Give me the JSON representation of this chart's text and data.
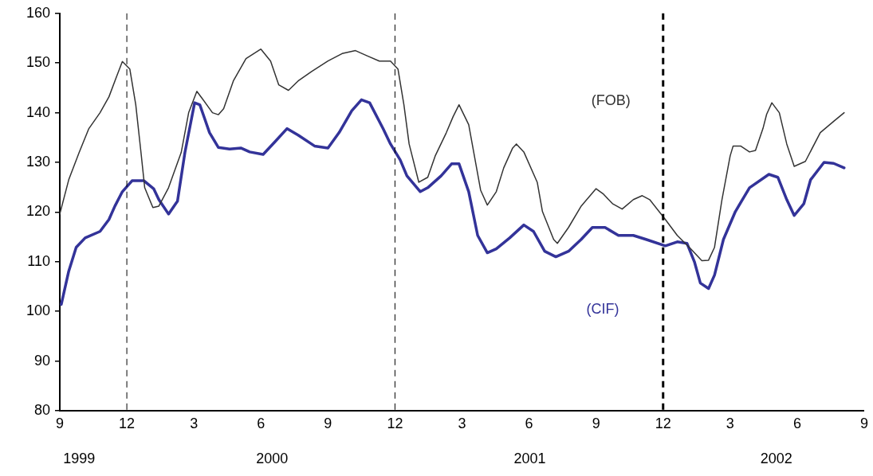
{
  "chart_data": {
    "type": "line",
    "xlim": [
      "1999-09-01",
      "2002-09-01"
    ],
    "xticks": [
      {
        "value": "1999-09-01",
        "label": "9"
      },
      {
        "value": "1999-12-01",
        "label": "12"
      },
      {
        "value": "2000-03-01",
        "label": "3"
      },
      {
        "value": "2000-06-01",
        "label": "6"
      },
      {
        "value": "2000-09-01",
        "label": "9"
      },
      {
        "value": "2000-12-01",
        "label": "12"
      },
      {
        "value": "2001-03-01",
        "label": "3"
      },
      {
        "value": "2001-06-01",
        "label": "6"
      },
      {
        "value": "2001-09-01",
        "label": "9"
      },
      {
        "value": "2001-12-01",
        "label": "12"
      },
      {
        "value": "2002-03-01",
        "label": "3"
      },
      {
        "value": "2002-06-01",
        "label": "6"
      },
      {
        "value": "2002-09-01",
        "label": "9"
      }
    ],
    "x2lim": [
      "1999-09-01",
      "2002-09-01"
    ],
    "x2ticks": [
      {
        "value": "1999-09-27",
        "label": "1999"
      },
      {
        "value": "2000-06-16",
        "label": "2000"
      },
      {
        "value": "2001-06-02",
        "label": "2001"
      },
      {
        "value": "2002-05-03",
        "label": "2002"
      }
    ],
    "ylim": [
      80,
      160
    ],
    "yticks": [
      80,
      90,
      100,
      110,
      120,
      130,
      140,
      150,
      160
    ],
    "grid": false,
    "legend": false,
    "marker": "none",
    "line_style": "solid",
    "ref_lines": [
      {
        "axis": "x",
        "value": "1999-12-01",
        "color": "#000000",
        "line_style": "dashed"
      },
      {
        "axis": "x",
        "value": "2000-12-01",
        "color": "#000000",
        "line_style": "dashed"
      },
      {
        "axis": "x",
        "value": "2001-12-01",
        "color": "#000000",
        "line_style": "dashed"
      }
    ],
    "series": [
      {
        "name": "(FOB)",
        "color": "#333333",
        "x": [
          "1999-09-01",
          "1999-09-13",
          "1999-09-27",
          "1999-10-10",
          "1999-10-25",
          "1999-11-07",
          "1999-11-17",
          "1999-11-25",
          "1999-12-05",
          "1999-12-13",
          "1999-12-20",
          "1999-12-25",
          "2000-01-06",
          "2000-01-14",
          "2000-01-27",
          "2000-02-14",
          "2000-02-24",
          "2000-03-05",
          "2000-03-12",
          "2000-03-26",
          "2000-04-04",
          "2000-04-11",
          "2000-04-24",
          "2000-05-11",
          "2000-06-01",
          "2000-06-14",
          "2000-06-25",
          "2000-07-08",
          "2000-07-21",
          "2000-08-09",
          "2000-09-01",
          "2000-09-20",
          "2000-10-08",
          "2000-10-23",
          "2000-11-10",
          "2000-11-25",
          "2000-12-05",
          "2000-12-13",
          "2000-12-20",
          "2001-01-03",
          "2001-01-15",
          "2001-01-25",
          "2001-02-10",
          "2001-02-19",
          "2001-02-27",
          "2001-03-10",
          "2001-03-26",
          "2001-04-05",
          "2001-04-17",
          "2001-04-27",
          "2001-05-09",
          "2001-05-14",
          "2001-05-24",
          "2001-06-12",
          "2001-06-19",
          "2001-07-04",
          "2001-07-09",
          "2001-07-24",
          "2001-08-11",
          "2001-09-01",
          "2001-09-11",
          "2001-09-23",
          "2001-10-06",
          "2001-10-21",
          "2001-11-03",
          "2001-11-13",
          "2001-12-04",
          "2001-12-20",
          "2002-01-08",
          "2002-01-23",
          "2002-02-02",
          "2002-02-10",
          "2002-02-20",
          "2002-03-01",
          "2002-03-05",
          "2002-03-15",
          "2002-03-27",
          "2002-04-05",
          "2002-04-15",
          "2002-04-20",
          "2002-04-27",
          "2002-05-07",
          "2002-05-17",
          "2002-05-27",
          "2002-06-12",
          "2002-07-02",
          "2002-07-21",
          "2002-08-04"
        ],
        "values": [
          119.6,
          126.5,
          132,
          136.8,
          140,
          143.2,
          147.2,
          150.3,
          148.8,
          141.6,
          132,
          124.9,
          120.9,
          121.2,
          124.9,
          132,
          140,
          144.3,
          142.9,
          140,
          139.6,
          140.8,
          146.4,
          150.9,
          152.8,
          150.4,
          145.6,
          144.5,
          146.4,
          148.3,
          150.4,
          151.9,
          152.5,
          151.5,
          150.4,
          150.4,
          148.8,
          141.6,
          133.7,
          126,
          127,
          131.3,
          136,
          139.2,
          141.6,
          137.6,
          124.4,
          121.4,
          124.1,
          128.9,
          132.9,
          133.7,
          132.1,
          126,
          120.1,
          114.5,
          113.7,
          116.9,
          121.2,
          124.7,
          123.6,
          121.7,
          120.6,
          122.5,
          123.3,
          122.5,
          118.5,
          115.3,
          112.6,
          110.2,
          110.3,
          112.9,
          122.5,
          131.3,
          133.3,
          133.3,
          132.1,
          132.4,
          136.8,
          139.7,
          142,
          140,
          133.7,
          129.2,
          130.2,
          136,
          138.4,
          140
        ]
      },
      {
        "name": "(CIF)",
        "color": "#333399",
        "x": [
          "1999-09-03",
          "1999-09-13",
          "1999-09-23",
          "1999-10-05",
          "1999-10-25",
          "1999-11-07",
          "1999-11-15",
          "1999-11-25",
          "1999-12-08",
          "1999-12-24",
          "2000-01-07",
          "2000-01-14",
          "2000-01-27",
          "2000-02-09",
          "2000-02-19",
          "2000-03-02",
          "2000-03-09",
          "2000-03-22",
          "2000-04-04",
          "2000-04-19",
          "2000-05-04",
          "2000-05-16",
          "2000-06-04",
          "2000-06-19",
          "2000-07-06",
          "2000-07-21",
          "2000-08-13",
          "2000-09-01",
          "2000-09-16",
          "2000-10-03",
          "2000-10-16",
          "2000-10-27",
          "2000-11-15",
          "2000-11-25",
          "2000-12-08",
          "2000-12-17",
          "2001-01-05",
          "2001-01-15",
          "2001-02-03",
          "2001-02-17",
          "2001-02-27",
          "2001-03-10",
          "2001-03-22",
          "2001-04-05",
          "2001-04-17",
          "2001-05-05",
          "2001-05-24",
          "2001-06-07",
          "2001-06-22",
          "2001-07-07",
          "2001-07-24",
          "2001-08-11",
          "2001-08-26",
          "2001-09-13",
          "2001-10-01",
          "2001-10-21",
          "2001-11-08",
          "2001-12-04",
          "2001-12-20",
          "2002-01-03",
          "2002-01-13",
          "2002-01-21",
          "2002-02-02",
          "2002-02-10",
          "2002-02-22",
          "2002-03-08",
          "2002-03-27",
          "2002-04-23",
          "2002-05-05",
          "2002-05-17",
          "2002-05-27",
          "2002-06-10",
          "2002-06-19",
          "2002-07-07",
          "2002-07-20",
          "2002-08-04"
        ],
        "values": [
          101.4,
          108.1,
          112.9,
          114.8,
          116.1,
          118.5,
          121.2,
          124.1,
          126.3,
          126.3,
          124.7,
          122.5,
          119.6,
          122.2,
          132,
          142,
          141.6,
          136,
          133,
          132.7,
          132.9,
          132.1,
          131.6,
          134,
          136.8,
          135.5,
          133.3,
          132.9,
          136,
          140.4,
          142.6,
          142,
          136.8,
          133.7,
          130.5,
          127.3,
          124.1,
          124.9,
          127.3,
          129.7,
          129.7,
          124.1,
          115.3,
          111.8,
          112.6,
          114.8,
          117.4,
          116.1,
          112.1,
          111,
          112.1,
          114.5,
          116.9,
          116.9,
          115.3,
          115.3,
          114.5,
          113.2,
          114,
          113.7,
          110,
          105.7,
          104.6,
          107.3,
          114.5,
          120.1,
          124.9,
          127.6,
          127,
          122.5,
          119.3,
          121.7,
          126.5,
          130,
          129.8,
          128.9
        ]
      }
    ]
  }
}
